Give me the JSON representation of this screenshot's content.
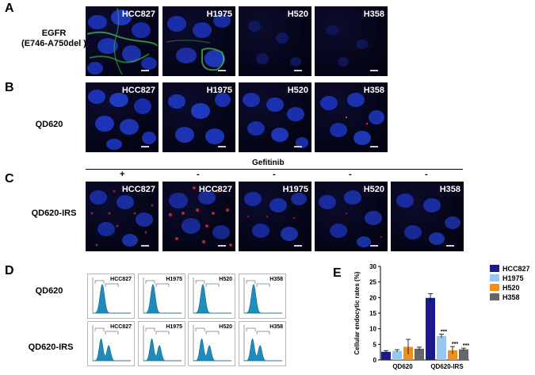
{
  "panels": {
    "A": {
      "letter": "A",
      "row_label": [
        "EGFR",
        "(E746-A750del )"
      ],
      "images": [
        "HCC827",
        "H1975",
        "H520",
        "H358"
      ]
    },
    "B": {
      "letter": "B",
      "row_label": [
        "QD620"
      ],
      "images": [
        "HCC827",
        "H1975",
        "H520",
        "H358"
      ]
    },
    "C": {
      "letter": "C",
      "row_label": [
        "QD620-IRS"
      ],
      "treatment_label": "Gefitinib",
      "signs": [
        "+",
        "-",
        "-",
        "-",
        "-"
      ],
      "images": [
        "HCC827",
        "HCC827",
        "H1975",
        "H520",
        "H358"
      ]
    },
    "D": {
      "letter": "D",
      "rows": [
        {
          "label": "QD620",
          "images": [
            "HCC827",
            "H1975",
            "H520",
            "H358"
          ]
        },
        {
          "label": "QD620-IRS",
          "images": [
            "HCC827",
            "H1975",
            "H520",
            "H358"
          ]
        }
      ]
    },
    "E": {
      "letter": "E"
    }
  },
  "chart_data": {
    "type": "bar",
    "categories": [
      "QD620",
      "QD620-IRS"
    ],
    "ylabel": "Cellular endocytic rates (%)",
    "xlabel": "",
    "ylim": [
      0,
      30
    ],
    "yticks": [
      0,
      5,
      10,
      15,
      20,
      25,
      30
    ],
    "legend_position": "top-right",
    "series": [
      {
        "name": "HCC827",
        "color": "#1a1a8c",
        "values": [
          2.6,
          19.9
        ],
        "errors": [
          0.4,
          1.3
        ],
        "sig": [
          "",
          ""
        ]
      },
      {
        "name": "H1975",
        "color": "#99c6f0",
        "values": [
          2.9,
          7.7
        ],
        "errors": [
          0.4,
          0.6
        ],
        "sig": [
          "",
          "***"
        ]
      },
      {
        "name": "H520",
        "color": "#ef8f1f",
        "values": [
          4.2,
          3.1
        ],
        "errors": [
          2.4,
          1.2
        ],
        "sig": [
          "",
          "***"
        ]
      },
      {
        "name": "H358",
        "color": "#666666",
        "values": [
          3.6,
          3.4
        ],
        "errors": [
          0.5,
          0.4
        ],
        "sig": [
          "",
          "***"
        ]
      }
    ]
  }
}
